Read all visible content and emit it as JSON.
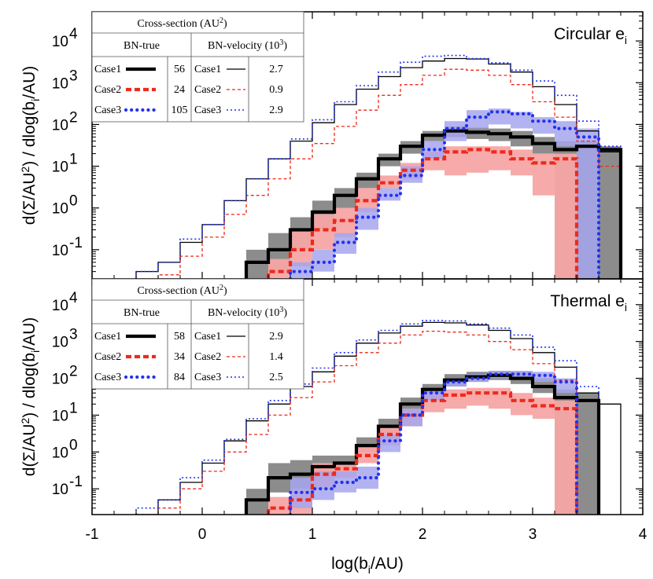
{
  "chart_data": [
    {
      "type": "area",
      "panel_label": "Circular e",
      "panel_label_sub": "i",
      "xlim": [
        -1,
        4
      ],
      "ylim": [
        0.02,
        50000
      ],
      "yscale": "log",
      "x_edges": [
        -0.6,
        -0.4,
        -0.2,
        0.0,
        0.2,
        0.4,
        0.6,
        0.8,
        1.0,
        1.2,
        1.4,
        1.6,
        1.8,
        2.0,
        2.2,
        2.4,
        2.6,
        2.8,
        3.0,
        3.2,
        3.4,
        3.6,
        3.8
      ],
      "series": [
        {
          "name": "Case1 BN-velocity",
          "style": "black-thin",
          "values": [
            0.03,
            0.05,
            0.15,
            0.4,
            1.5,
            5,
            15,
            40,
            110,
            300,
            700,
            1400,
            2300,
            3300,
            3800,
            3700,
            2800,
            1800,
            800,
            300,
            70,
            22
          ]
        },
        {
          "name": "Case2 BN-velocity",
          "style": "red-dashed",
          "values": [
            0.02,
            0.025,
            0.07,
            0.2,
            0.7,
            2,
            5,
            15,
            35,
            90,
            220,
            500,
            900,
            1500,
            2100,
            2000,
            1500,
            900,
            350,
            150,
            40,
            10
          ]
        },
        {
          "name": "Case3 BN-velocity",
          "style": "blue-dotted",
          "values": [
            0.03,
            0.05,
            0.18,
            0.4,
            1.5,
            5,
            15,
            45,
            130,
            350,
            850,
            1800,
            3100,
            4300,
            4500,
            3800,
            3000,
            2000,
            1100,
            500,
            120,
            30
          ]
        },
        {
          "name": "Case1 BN-true",
          "style": "black-thick",
          "values": [
            null,
            null,
            null,
            null,
            null,
            0.05,
            0.1,
            0.3,
            0.8,
            2,
            5,
            15,
            30,
            55,
            70,
            65,
            60,
            50,
            35,
            25,
            30,
            25
          ],
          "band_low": [
            null,
            null,
            null,
            null,
            null,
            0.02,
            0.03,
            0.1,
            0.3,
            1,
            3,
            10,
            20,
            40,
            50,
            45,
            40,
            30,
            20,
            0.02,
            0.02,
            0.02
          ],
          "band_high": [
            null,
            null,
            null,
            null,
            null,
            0.1,
            0.25,
            0.6,
            1.5,
            3,
            7,
            20,
            40,
            70,
            90,
            85,
            80,
            70,
            50,
            40,
            40,
            30
          ]
        },
        {
          "name": "Case2 BN-true",
          "style": "red-thickdash",
          "values": [
            null,
            null,
            null,
            null,
            null,
            null,
            0.03,
            0.1,
            0.3,
            0.5,
            1.5,
            4,
            8,
            15,
            22,
            25,
            22,
            15,
            12,
            15,
            null,
            null
          ],
          "band_low": [
            null,
            null,
            null,
            null,
            null,
            null,
            0.02,
            0.04,
            0.1,
            0.2,
            0.8,
            3,
            5,
            8,
            6,
            7,
            8,
            6,
            2,
            0.02,
            null,
            null
          ],
          "band_high": [
            null,
            null,
            null,
            null,
            null,
            null,
            0.06,
            0.3,
            0.7,
            1,
            3,
            6,
            12,
            22,
            30,
            30,
            30,
            25,
            20,
            20,
            null,
            null
          ]
        },
        {
          "name": "Case3 BN-true",
          "style": "blue-dots",
          "values": [
            null,
            null,
            null,
            null,
            null,
            null,
            null,
            0.03,
            0.05,
            0.15,
            0.6,
            2,
            6,
            25,
            80,
            150,
            200,
            180,
            120,
            80,
            50,
            null
          ],
          "band_low": [
            null,
            null,
            null,
            null,
            null,
            null,
            null,
            0.02,
            0.03,
            0.08,
            0.3,
            1.5,
            4,
            15,
            40,
            80,
            100,
            80,
            60,
            30,
            0.02,
            null
          ],
          "band_high": [
            null,
            null,
            null,
            null,
            null,
            null,
            null,
            0.05,
            0.1,
            0.25,
            1,
            3,
            10,
            40,
            120,
            220,
            240,
            200,
            150,
            120,
            80,
            null
          ]
        }
      ],
      "legend": {
        "title": "Cross-section (AU",
        "title_sup": "2",
        "title_end": ")",
        "col1": "BN-true",
        "col2": "BN-velocity (10",
        "col2_sup": "3",
        "col2_end": ")",
        "rows": [
          {
            "case": "Case1",
            "true_val": "56",
            "vel_val": "2.7"
          },
          {
            "case": "Case2",
            "true_val": "24",
            "vel_val": "0.9"
          },
          {
            "case": "Case3",
            "true_val": "105",
            "vel_val": "2.9"
          }
        ]
      }
    },
    {
      "type": "area",
      "panel_label": "Thermal e",
      "panel_label_sub": "i",
      "xlim": [
        -1,
        4
      ],
      "ylim": [
        0.02,
        50000
      ],
      "yscale": "log",
      "x_edges": [
        -0.6,
        -0.4,
        -0.2,
        0.0,
        0.2,
        0.4,
        0.6,
        0.8,
        1.0,
        1.2,
        1.4,
        1.6,
        1.8,
        2.0,
        2.2,
        2.4,
        2.6,
        2.8,
        3.0,
        3.2,
        3.4,
        3.6,
        3.8
      ],
      "series": [
        {
          "name": "Case1 BN-velocity",
          "style": "black-thin",
          "values": [
            0.02,
            0.05,
            0.15,
            0.5,
            2,
            7,
            20,
            60,
            150,
            400,
            900,
            1700,
            2600,
            3300,
            3200,
            2800,
            2000,
            1200,
            500,
            200,
            40,
            20
          ]
        },
        {
          "name": "Case2 BN-velocity",
          "style": "red-dashed",
          "values": [
            0.02,
            0.03,
            0.1,
            0.3,
            1,
            3,
            10,
            30,
            80,
            220,
            500,
            900,
            1500,
            1900,
            1800,
            1500,
            1000,
            600,
            250,
            90,
            25,
            null
          ]
        },
        {
          "name": "Case3 BN-velocity",
          "style": "blue-dotted",
          "values": [
            0.03,
            0.05,
            0.2,
            0.6,
            2.2,
            8,
            25,
            70,
            190,
            500,
            1100,
            2000,
            3000,
            3700,
            3600,
            3000,
            2300,
            1500,
            700,
            300,
            60,
            null
          ]
        },
        {
          "name": "Case1 BN-true",
          "style": "black-thick",
          "values": [
            null,
            null,
            null,
            null,
            null,
            0.05,
            0.2,
            0.25,
            0.4,
            0.5,
            1.5,
            5,
            20,
            50,
            90,
            110,
            120,
            100,
            60,
            30,
            25,
            null
          ],
          "band_low": [
            null,
            null,
            null,
            null,
            null,
            0.02,
            0.08,
            0.1,
            0.2,
            0.3,
            1,
            3,
            12,
            30,
            60,
            80,
            90,
            70,
            40,
            0.02,
            0.02,
            null
          ],
          "band_high": [
            null,
            null,
            null,
            null,
            null,
            0.1,
            0.5,
            0.6,
            0.8,
            0.8,
            2.5,
            8,
            30,
            70,
            130,
            150,
            160,
            150,
            100,
            50,
            40,
            null
          ]
        },
        {
          "name": "Case2 BN-true",
          "style": "red-thickdash",
          "values": [
            null,
            null,
            null,
            null,
            null,
            null,
            0.03,
            0.05,
            0.25,
            0.35,
            0.8,
            3,
            10,
            25,
            35,
            40,
            40,
            25,
            18,
            15,
            null,
            null
          ],
          "band_low": [
            null,
            null,
            null,
            null,
            null,
            null,
            0.02,
            0.02,
            0.1,
            0.2,
            0.5,
            1.5,
            5,
            12,
            15,
            18,
            15,
            10,
            8,
            0.02,
            null,
            null
          ],
          "band_high": [
            null,
            null,
            null,
            null,
            null,
            null,
            0.06,
            0.1,
            0.5,
            0.5,
            1.5,
            5,
            15,
            40,
            50,
            55,
            55,
            40,
            30,
            25,
            null,
            null
          ]
        },
        {
          "name": "Case3 BN-true",
          "style": "blue-dots",
          "values": [
            null,
            null,
            null,
            null,
            null,
            null,
            null,
            0.08,
            0.1,
            0.15,
            0.2,
            2,
            10,
            40,
            80,
            100,
            130,
            130,
            120,
            80,
            null,
            null
          ],
          "band_low": [
            null,
            null,
            null,
            null,
            null,
            null,
            null,
            0.03,
            0.05,
            0.08,
            0.1,
            1,
            5,
            25,
            60,
            80,
            100,
            100,
            80,
            40,
            null,
            null
          ],
          "band_high": [
            null,
            null,
            null,
            null,
            null,
            null,
            null,
            0.2,
            0.3,
            0.3,
            0.4,
            3,
            15,
            55,
            100,
            130,
            160,
            160,
            150,
            100,
            null,
            null
          ]
        }
      ],
      "legend": {
        "title": "Cross-section (AU",
        "title_sup": "2",
        "title_end": ")",
        "col1": "BN-true",
        "col2": "BN-velocity (10",
        "col2_sup": "3",
        "col2_end": ")",
        "rows": [
          {
            "case": "Case1",
            "true_val": "58",
            "vel_val": "2.9"
          },
          {
            "case": "Case2",
            "true_val": "34",
            "vel_val": "1.4"
          },
          {
            "case": "Case3",
            "true_val": "84",
            "vel_val": "2.5"
          }
        ]
      }
    }
  ],
  "axes": {
    "xlabel": "log(b",
    "xlabel_sub": "i",
    "xlabel_end": "/AU)",
    "ylabel_a": "d(Σ/AU",
    "ylabel_sup": "2",
    "ylabel_b": ") / dlog(b",
    "ylabel_sub": "i",
    "ylabel_c": "/AU)",
    "xticks": [
      "-1",
      "0",
      "1",
      "2",
      "3",
      "4"
    ],
    "yticks_major": [
      "10",
      "10",
      "10",
      "10",
      "10",
      "10"
    ],
    "yticks_exp": [
      "-1",
      "0",
      "1",
      "2",
      "3",
      "4"
    ]
  },
  "colors": {
    "black": "#000000",
    "red": "#ee2a1b",
    "blue": "#2233ee",
    "grey_band": "#8c8c8c",
    "red_band": "#f7a5a5",
    "blue_band": "#a6a6ee"
  }
}
